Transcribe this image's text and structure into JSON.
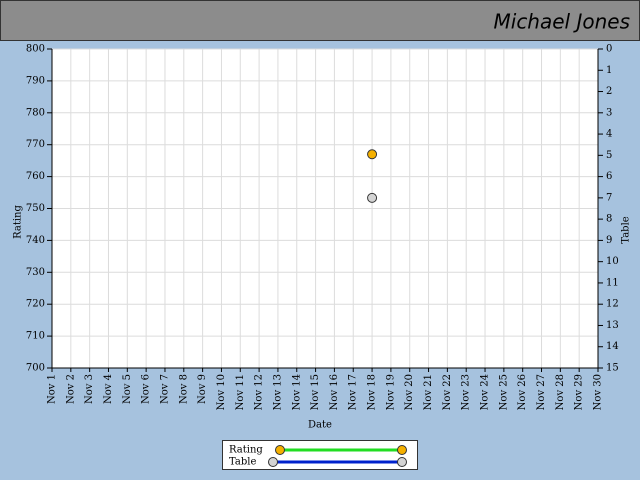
{
  "header": {
    "title": "Michael Jones"
  },
  "chart_data": {
    "type": "line",
    "x_label": "Date",
    "y_label": "Rating",
    "y2_label": "Table",
    "categories": [
      "Nov 1",
      "Nov 2",
      "Nov 3",
      "Nov 4",
      "Nov 5",
      "Nov 6",
      "Nov 7",
      "Nov 8",
      "Nov 9",
      "Nov 10",
      "Nov 11",
      "Nov 12",
      "Nov 13",
      "Nov 14",
      "Nov 15",
      "Nov 16",
      "Nov 17",
      "Nov 18",
      "Nov 19",
      "Nov 20",
      "Nov 21",
      "Nov 22",
      "Nov 23",
      "Nov 24",
      "Nov 25",
      "Nov 26",
      "Nov 27",
      "Nov 28",
      "Nov 29",
      "Nov 30"
    ],
    "series": [
      {
        "name": "Rating",
        "color": "#f5b000",
        "line_color": "#22dd22",
        "values": [
          null,
          null,
          null,
          null,
          null,
          null,
          null,
          null,
          null,
          null,
          null,
          null,
          null,
          null,
          null,
          null,
          null,
          767,
          null,
          null,
          null,
          null,
          null,
          null,
          null,
          null,
          null,
          null,
          null,
          null
        ]
      },
      {
        "name": "Table",
        "axis": "y2",
        "color": "#d4d4d4",
        "line_color": "#0022cc",
        "values": [
          null,
          null,
          null,
          null,
          null,
          null,
          null,
          null,
          null,
          null,
          null,
          null,
          null,
          null,
          null,
          null,
          null,
          7,
          null,
          null,
          null,
          null,
          null,
          null,
          null,
          null,
          null,
          null,
          null,
          null
        ]
      }
    ],
    "ylim": [
      700,
      800
    ],
    "yticks": [
      700,
      710,
      720,
      730,
      740,
      750,
      760,
      770,
      780,
      790,
      800
    ],
    "y2lim": [
      0,
      15
    ],
    "y2_inverted": true,
    "y2ticks": [
      0,
      1,
      2,
      3,
      4,
      5,
      6,
      7,
      8,
      9,
      10,
      11,
      12,
      13,
      14,
      15
    ],
    "grid": true
  }
}
